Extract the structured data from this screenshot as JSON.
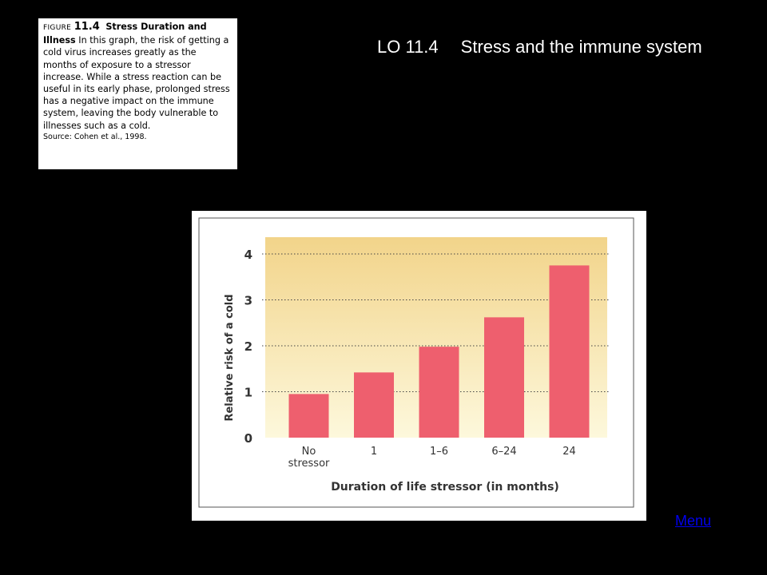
{
  "slide": {
    "title_code": "LO 11.4",
    "title_text": "Stress and the immune system",
    "menu_label": "Menu"
  },
  "caption": {
    "figure_label": "FIGURE",
    "figure_number": "11.4",
    "figure_title": "Stress Duration and Illness",
    "body": "In this graph, the risk of getting a cold virus increases greatly as the months of exposure to a stressor increase. While a stress reaction can be useful in its early phase, prolonged stress has a negative impact on the immune system, leaving the body vulnerable to illnesses such as a cold.",
    "source": "Source: Cohen et al., 1998."
  },
  "colors": {
    "background": "#000000",
    "bar": "#ee5f6e",
    "plot_gradient_top": "#f2d48a",
    "plot_gradient_bottom": "#fdf8dc",
    "chart_border": "#555555",
    "title_text": "#ffffff",
    "link": "#0000ee"
  },
  "chart_data": {
    "type": "bar",
    "categories": [
      "No stressor",
      "1",
      "1–6",
      "6–24",
      "24"
    ],
    "category_lines": [
      [
        "No",
        "stressor"
      ],
      [
        "1"
      ],
      [
        "1–6"
      ],
      [
        "6–24"
      ],
      [
        "24"
      ]
    ],
    "values": [
      0.95,
      1.42,
      1.98,
      2.62,
      3.75
    ],
    "xlabel": "Duration of life stressor (in months)",
    "ylabel": "Relative risk of a cold",
    "ylim": [
      0,
      4.4
    ],
    "yticks": [
      0,
      1,
      2,
      3,
      4
    ],
    "grid": "dotted horizontal at 1, 2, 3, 4",
    "legend": "none"
  }
}
